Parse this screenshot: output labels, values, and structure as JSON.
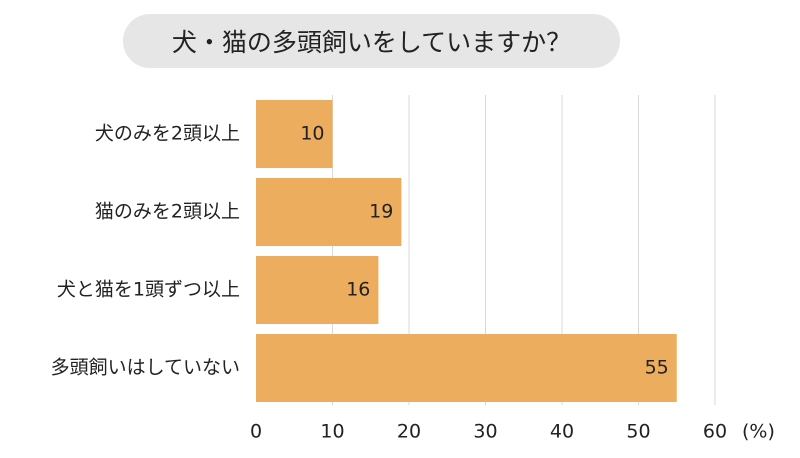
{
  "title": "犬・猫の多頭飼いをしていますか？",
  "chart_data": {
    "type": "bar",
    "orientation": "horizontal",
    "categories": [
      "犬のみを2頭以上",
      "猫のみを2頭以上",
      "犬と猫を1頭ずつ以上",
      "多頭飼いはしていない"
    ],
    "values": [
      10,
      19,
      16,
      55
    ],
    "xlim": [
      0,
      60
    ],
    "xticks": [
      "0",
      "10",
      "20",
      "30",
      "40",
      "50",
      "60"
    ],
    "unit_label": "(%)",
    "grid": true,
    "bar_color": "#ECAD5E",
    "grid_color": "#d9d9d9"
  }
}
